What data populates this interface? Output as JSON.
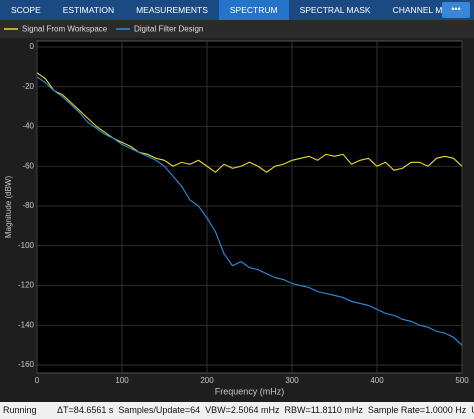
{
  "toolbar": {
    "tabs": [
      "SCOPE",
      "ESTIMATION",
      "MEASUREMENTS",
      "SPECTRUM",
      "SPECTRAL MASK",
      "CHANNEL MEA···"
    ],
    "more": "•••"
  },
  "chart_data": {
    "type": "line",
    "xlabel": "Frequency (mHz)",
    "ylabel": "Magnitude (dBW)",
    "x": [
      0,
      10,
      20,
      30,
      40,
      50,
      60,
      70,
      80,
      90,
      100,
      110,
      120,
      130,
      140,
      150,
      160,
      170,
      180,
      190,
      200,
      210,
      220,
      230,
      240,
      250,
      260,
      270,
      280,
      290,
      300,
      310,
      320,
      330,
      340,
      350,
      360,
      370,
      380,
      390,
      400,
      410,
      420,
      430,
      440,
      450,
      460,
      470,
      480,
      490,
      500
    ],
    "series": [
      {
        "name": "Signal From Workspace",
        "color": "#e8dc2a",
        "values": [
          -13,
          -16,
          -22,
          -24,
          -28,
          -32,
          -36,
          -40,
          -43,
          -46,
          -48,
          -50,
          -53,
          -54,
          -56,
          -57,
          -60,
          -58,
          -59,
          -57,
          -60,
          -63,
          -59,
          -61,
          -60,
          -58,
          -60,
          -63,
          -60,
          -59,
          -57,
          -56,
          -55,
          -57,
          -54,
          -55,
          -54,
          -59,
          -57,
          -56,
          -60,
          -58,
          -62,
          -61,
          -58,
          -58,
          -60,
          -56,
          -55,
          -56,
          -60
        ]
      },
      {
        "name": "Digital Filter Design",
        "color": "#2e8fe0",
        "values": [
          -15,
          -18,
          -22,
          -25,
          -29,
          -33,
          -38,
          -41,
          -44,
          -46,
          -49,
          -51,
          -53,
          -55,
          -57,
          -60,
          -65,
          -70,
          -77,
          -80,
          -86,
          -93,
          -104,
          -110,
          -108,
          -111,
          -112,
          -114,
          -116,
          -117,
          -119,
          -120,
          -121,
          -123,
          -124,
          -125,
          -126,
          -128,
          -129,
          -130,
          -132,
          -134,
          -135,
          -137,
          -138,
          -140,
          -141,
          -143,
          -144,
          -146,
          -150
        ]
      }
    ],
    "xlim": [
      0,
      500
    ],
    "ylim": [
      -164,
      3
    ],
    "xticks": [
      0,
      100,
      200,
      300,
      400,
      500
    ],
    "yticks": [
      0,
      -20,
      -40,
      -60,
      -80,
      -100,
      -120,
      -140,
      -160
    ],
    "grid": true
  },
  "status": {
    "state": "Running",
    "items": [
      "ΔT=84.6561 s",
      "Samples/Update=64",
      "VBW=2.5064 mHz",
      "RBW=11.8110 mHz",
      "Sample Rate=1.0000 Hz",
      "Updates"
    ]
  }
}
